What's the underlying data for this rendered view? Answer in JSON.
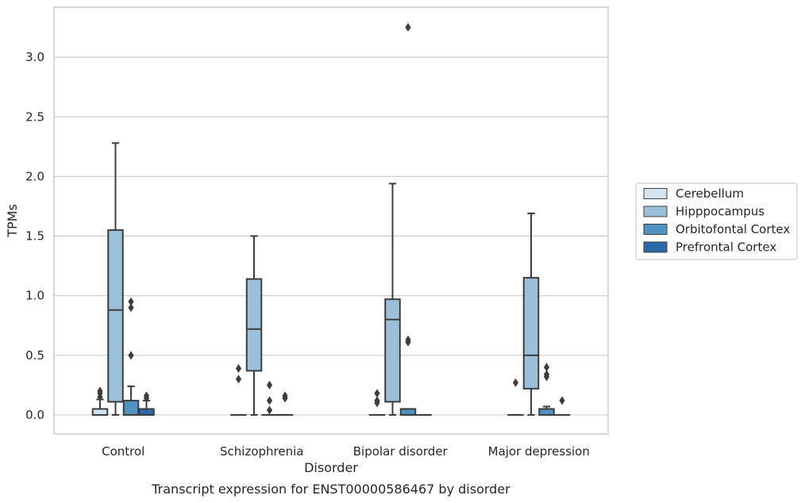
{
  "chart_data": {
    "type": "box",
    "title": "",
    "caption": "Transcript expression for ENST00000586467 by disorder",
    "xlabel": "Disorder",
    "ylabel": "TPMs",
    "ylim": [
      -0.16,
      3.42
    ],
    "yticks": [
      0.0,
      0.5,
      1.0,
      1.5,
      2.0,
      2.5,
      3.0
    ],
    "ytick_labels": [
      "0.0",
      "0.5",
      "1.0",
      "1.5",
      "2.0",
      "2.5",
      "3.0"
    ],
    "grid": "horizontal",
    "legend_position": "right-center",
    "categories": [
      "Control",
      "Schizophrenia",
      "Bipolar disorder",
      "Major depression"
    ],
    "series": [
      {
        "name": "Cerebellum",
        "color": "#d4e3f0",
        "boxes": [
          {
            "q1": 0.0,
            "median": 0.0,
            "q3": 0.05,
            "whislo": 0.0,
            "whishi": 0.13,
            "fliers": [
              0.15,
              0.18,
              0.2
            ]
          },
          {
            "q1": 0.0,
            "median": 0.0,
            "q3": 0.0,
            "whislo": 0.0,
            "whishi": 0.0,
            "fliers": [
              0.3,
              0.39
            ]
          },
          {
            "q1": 0.0,
            "median": 0.0,
            "q3": 0.0,
            "whislo": 0.0,
            "whishi": 0.0,
            "fliers": [
              0.1,
              0.12,
              0.18
            ]
          },
          {
            "q1": 0.0,
            "median": 0.0,
            "q3": 0.0,
            "whislo": 0.0,
            "whishi": 0.0,
            "fliers": [
              0.27
            ]
          }
        ]
      },
      {
        "name": "Hipppocampus",
        "color": "#9ac1d9",
        "boxes": [
          {
            "q1": 0.11,
            "median": 0.88,
            "q3": 1.55,
            "whislo": 0.0,
            "whishi": 2.28,
            "fliers": []
          },
          {
            "q1": 0.37,
            "median": 0.72,
            "q3": 1.14,
            "whislo": 0.0,
            "whishi": 1.5,
            "fliers": []
          },
          {
            "q1": 0.11,
            "median": 0.8,
            "q3": 0.97,
            "whislo": 0.0,
            "whishi": 1.94,
            "fliers": []
          },
          {
            "q1": 0.22,
            "median": 0.5,
            "q3": 1.15,
            "whislo": 0.0,
            "whishi": 1.69,
            "fliers": []
          }
        ]
      },
      {
        "name": "Orbitofontal Cortex",
        "color": "#5092c2",
        "boxes": [
          {
            "q1": 0.0,
            "median": 0.0,
            "q3": 0.12,
            "whislo": 0.0,
            "whishi": 0.24,
            "fliers": [
              0.5,
              0.9,
              0.95
            ]
          },
          {
            "q1": 0.0,
            "median": 0.0,
            "q3": 0.0,
            "whislo": 0.0,
            "whishi": 0.0,
            "fliers": [
              0.04,
              0.12,
              0.25
            ]
          },
          {
            "q1": 0.0,
            "median": 0.0,
            "q3": 0.05,
            "whislo": 0.0,
            "whishi": 0.05,
            "fliers": [
              0.61,
              0.63,
              3.25
            ]
          },
          {
            "q1": 0.0,
            "median": 0.0,
            "q3": 0.05,
            "whislo": 0.0,
            "whishi": 0.07,
            "fliers": [
              0.32,
              0.34,
              0.4
            ]
          }
        ]
      },
      {
        "name": "Prefrontal Cortex",
        "color": "#2a6aa8",
        "boxes": [
          {
            "q1": 0.0,
            "median": 0.0,
            "q3": 0.05,
            "whislo": 0.0,
            "whishi": 0.12,
            "fliers": [
              0.14,
              0.16
            ]
          },
          {
            "q1": 0.0,
            "median": 0.0,
            "q3": 0.0,
            "whislo": 0.0,
            "whishi": 0.0,
            "fliers": [
              0.14,
              0.16
            ]
          },
          {
            "q1": 0.0,
            "median": 0.0,
            "q3": 0.0,
            "whislo": 0.0,
            "whishi": 0.0,
            "fliers": []
          },
          {
            "q1": 0.0,
            "median": 0.0,
            "q3": 0.0,
            "whislo": 0.0,
            "whishi": 0.0,
            "fliers": [
              0.12
            ]
          }
        ]
      }
    ]
  }
}
